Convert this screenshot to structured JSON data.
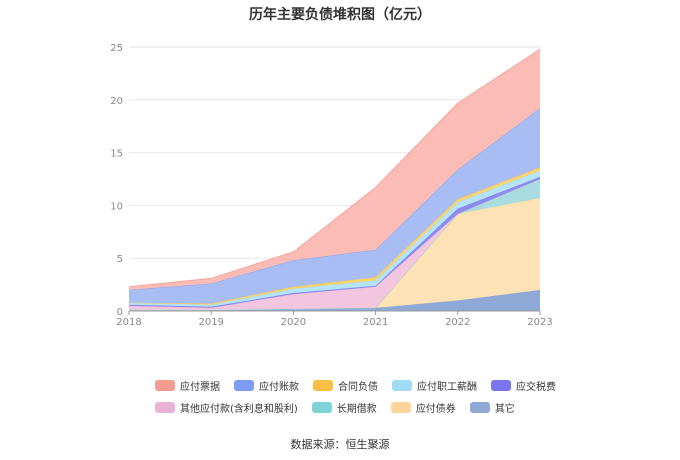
{
  "chart_data": {
    "type": "area",
    "stacked": true,
    "title": "历年主要负债堆积图（亿元）",
    "categories": [
      "2018",
      "2019",
      "2020",
      "2021",
      "2022",
      "2023"
    ],
    "ylim": [
      0,
      25
    ],
    "yticks": [
      "0",
      "5",
      "10",
      "15",
      "20",
      "25"
    ],
    "grid": true,
    "legend_position": "bottom",
    "series": [
      {
        "name": "其它",
        "color": "#8fa9d6",
        "values": [
          0.1,
          0.1,
          0.2,
          0.3,
          1.0,
          2.0
        ]
      },
      {
        "name": "应付债券",
        "color": "#fde2b5",
        "values": [
          0.0,
          0.0,
          0.0,
          0.0,
          8.2,
          8.7
        ]
      },
      {
        "name": "长期借款",
        "color": "#a7dde0",
        "values": [
          0.0,
          0.0,
          0.0,
          0.0,
          0.0,
          1.8
        ]
      },
      {
        "name": "其他应付款(含利息和股利)",
        "color": "#f2c6de",
        "values": [
          0.4,
          0.2,
          1.4,
          2.0,
          0.0,
          0.0
        ]
      },
      {
        "name": "应交税费",
        "color": "#8c8cf0",
        "values": [
          0.1,
          0.1,
          0.1,
          0.1,
          0.5,
          0.2
        ]
      },
      {
        "name": "应付职工薪酬",
        "color": "#b5e3f8",
        "values": [
          0.2,
          0.2,
          0.4,
          0.5,
          0.6,
          0.6
        ]
      },
      {
        "name": "合同负债",
        "color": "#fbd46a",
        "values": [
          0.0,
          0.1,
          0.2,
          0.3,
          0.3,
          0.3
        ]
      },
      {
        "name": "应付账款",
        "color": "#a9bdf5",
        "values": [
          1.2,
          1.9,
          2.5,
          2.6,
          2.8,
          5.6
        ]
      },
      {
        "name": "应付票据",
        "color": "#fbbcb5",
        "values": [
          0.3,
          0.5,
          0.8,
          5.9,
          6.3,
          5.6
        ]
      }
    ],
    "legend_colors": {
      "应付票据": "#f59b8f",
      "应付账款": "#7d9cf5",
      "合同负债": "#fbbf45",
      "应付职工薪酬": "#9fdcf6",
      "应交税费": "#7c74ee",
      "其他应付款(含利息和股利)": "#e7b3d6",
      "长期借款": "#7fd3d6",
      "应付债券": "#fdd59a",
      "其它": "#8fa9d6"
    },
    "legend_order": [
      [
        "应付票据",
        "应付账款",
        "合同负债",
        "应付职工薪酬",
        "应交税费"
      ],
      [
        "其他应付款(含利息和股利)",
        "长期借款",
        "应付债券",
        "其它"
      ]
    ]
  },
  "source_text": "数据来源：恒生聚源"
}
